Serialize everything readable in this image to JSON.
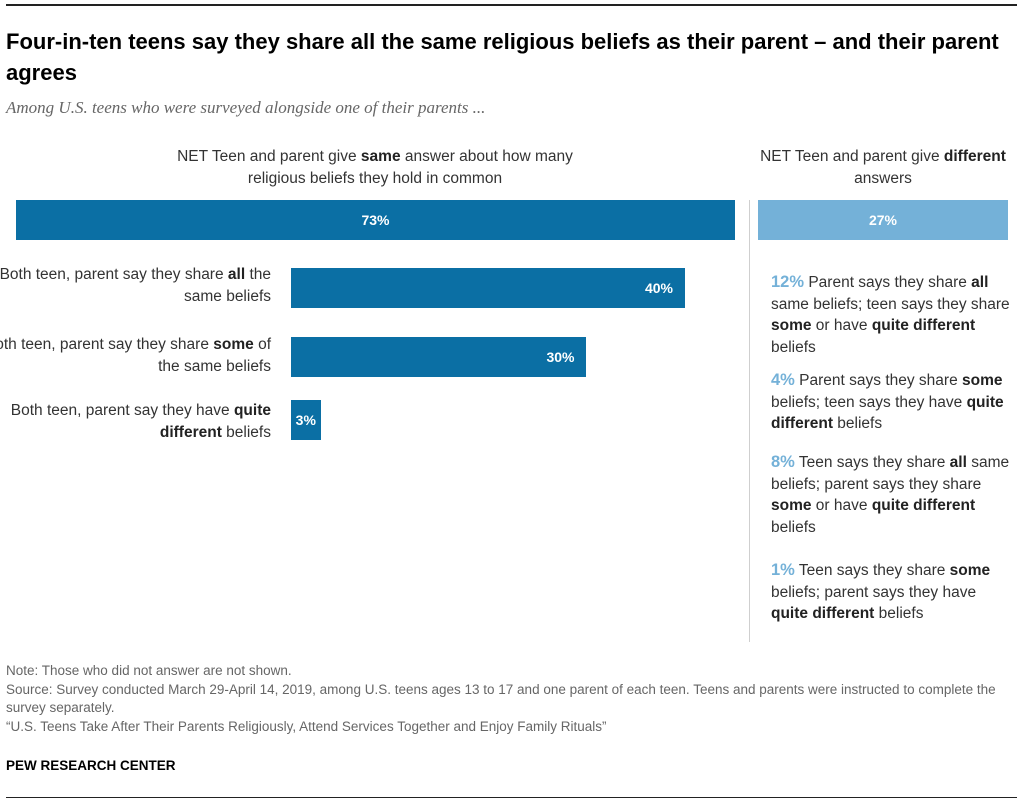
{
  "title": "Four-in-ten teens say they share all the same religious beliefs as their parent – and their parent agrees",
  "subtitle": "Among U.S. teens who were surveyed alongside one of their parents ...",
  "head_left": {
    "pre": "NET Teen and parent give ",
    "bold": "same",
    "post": " answer about how many religious beliefs they hold in common"
  },
  "head_right": {
    "pre": "NET Teen and parent give ",
    "bold": "different",
    "post": " answers"
  },
  "colors": {
    "dark_bar": "#0b6fa4",
    "light_bar": "#74b1d8",
    "accent_text": "#74b1d8"
  },
  "chart_data": {
    "type": "bar",
    "orientation": "horizontal",
    "xlim": [
      0,
      100
    ],
    "net": [
      {
        "label": "NET Teen and parent give same answer about how many religious beliefs they hold in common",
        "value": 73,
        "display": "73%"
      },
      {
        "label": "NET Teen and parent give different answers",
        "value": 27,
        "display": "27%"
      }
    ],
    "same_breakdown": [
      {
        "pre": "Both teen, parent say they share ",
        "bold": "all",
        "post": " the same beliefs",
        "value": 40,
        "display": "40%"
      },
      {
        "pre": "Both teen, parent say they share ",
        "bold": "some",
        "post": " of the same beliefs",
        "value": 30,
        "display": "30%"
      },
      {
        "pre": "Both teen, parent say they have ",
        "bold": "quite different",
        "post": " beliefs",
        "value": 3,
        "display": "3%"
      }
    ],
    "different_breakdown": [
      {
        "value": 12,
        "display": "12%",
        "parts": [
          " Parent says they share ",
          "all",
          " same beliefs; teen says they share ",
          "some",
          " or have ",
          "quite different",
          " beliefs"
        ]
      },
      {
        "value": 4,
        "display": "4%",
        "parts": [
          " Parent says they share ",
          "some",
          " beliefs; teen says they have ",
          "quite different",
          " beliefs"
        ]
      },
      {
        "value": 8,
        "display": "8%",
        "parts": [
          " Teen says they share ",
          "all",
          " same beliefs; parent says they share ",
          "some",
          " or have ",
          "quite different",
          " beliefs"
        ]
      },
      {
        "value": 1,
        "display": "1%",
        "parts": [
          " Teen says they share ",
          "some",
          " beliefs; parent says they have ",
          "quite different",
          " beliefs"
        ]
      }
    ]
  },
  "notes": {
    "note": "Note: Those who did not answer are not shown.",
    "source": "Source: Survey conducted March 29-April 14, 2019, among U.S. teens ages 13 to 17 and one parent of each teen. Teens and parents were instructed to complete the survey separately.",
    "report": "“U.S. Teens Take After Their Parents Religiously, Attend Services Together and Enjoy Family Rituals”"
  },
  "brand": "PEW RESEARCH CENTER"
}
